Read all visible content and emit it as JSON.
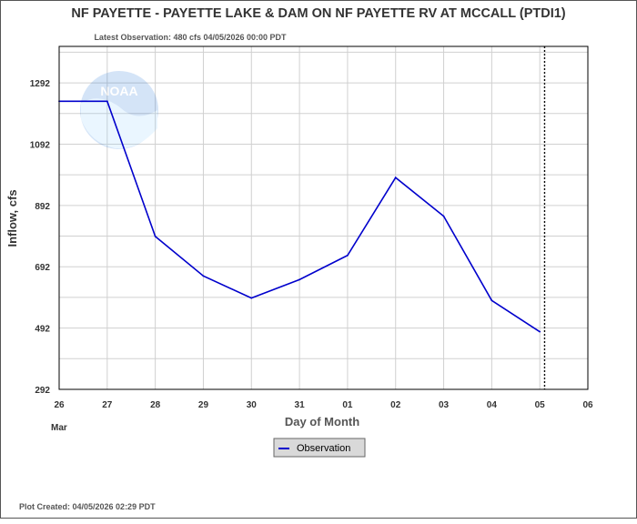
{
  "header": {
    "title": "NF PAYETTE - PAYETTE LAKE & DAM ON NF PAYETTE RV AT MCCALL  (PTDI1)",
    "latest_observation": "Latest Observation: 480 cfs 04/05/2026 00:00 PDT"
  },
  "footer": {
    "plot_created": "Plot Created: 04/05/2026 02:29 PDT"
  },
  "logo": {
    "text": "NOAA"
  },
  "legend": {
    "placement": "bottom-center",
    "label": "Observation"
  },
  "chart_data": {
    "type": "line",
    "ylabel": "Inflow, cfs",
    "xlabel": "Day of Month",
    "x_month_label": "Mar",
    "x_ticks": [
      "26",
      "27",
      "28",
      "29",
      "30",
      "31",
      "01",
      "02",
      "03",
      "04",
      "05",
      "06"
    ],
    "y_ticks": [
      "1292",
      "1092",
      "892",
      "692",
      "492",
      "292"
    ],
    "ylim": [
      292,
      1411
    ],
    "xlim": [
      0,
      11
    ],
    "grid": true,
    "latest_observation_marker_x": 10.1,
    "series": [
      {
        "name": "Observation",
        "color": "#0000cc",
        "x": [
          0,
          1,
          2,
          3,
          4,
          5,
          6,
          7,
          8,
          9,
          10
        ],
        "y": [
          1232,
          1232,
          791,
          662,
          590,
          650,
          729,
          983,
          857,
          582,
          480
        ]
      }
    ]
  }
}
